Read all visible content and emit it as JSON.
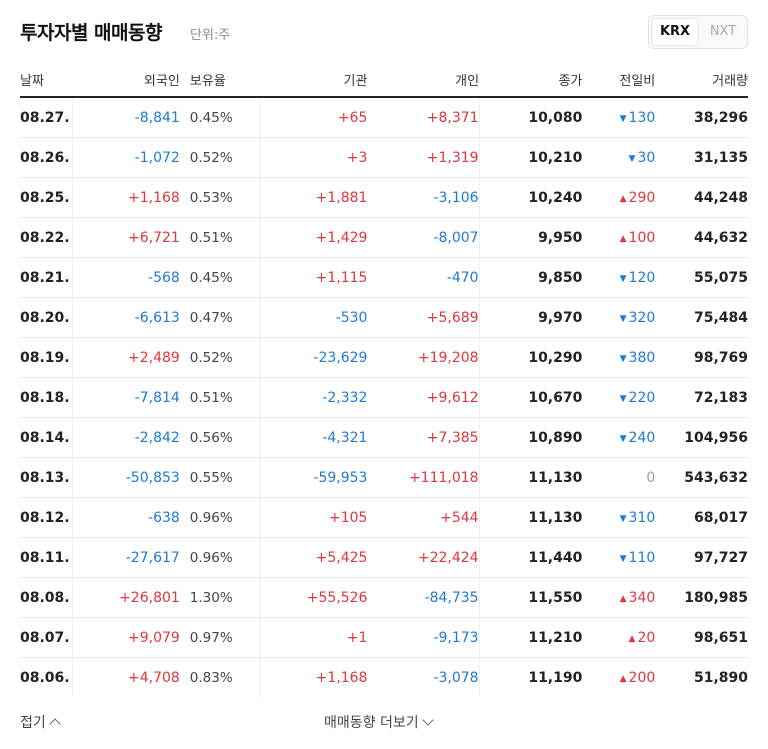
{
  "header": {
    "title": "투자자별 매매동향",
    "unit": "단위:주"
  },
  "market_toggle": {
    "options": [
      "KRX",
      "NXT"
    ],
    "selected": "KRX"
  },
  "columns": {
    "date": "날짜",
    "foreign": "외국인",
    "ratio": "보유율",
    "institution": "기관",
    "individual": "개인",
    "close": "종가",
    "change": "전일비",
    "volume": "거래량"
  },
  "colors": {
    "positive": "#e0363d",
    "negative": "#1e7ad6"
  },
  "rows": [
    {
      "date": "08.27.",
      "foreign": "-8,841",
      "ratio": "0.45%",
      "institution": "+65",
      "individual": "+8,371",
      "close": "10,080",
      "change_dir": "down",
      "change": "130",
      "volume": "38,296"
    },
    {
      "date": "08.26.",
      "foreign": "-1,072",
      "ratio": "0.52%",
      "institution": "+3",
      "individual": "+1,319",
      "close": "10,210",
      "change_dir": "down",
      "change": "30",
      "volume": "31,135"
    },
    {
      "date": "08.25.",
      "foreign": "+1,168",
      "ratio": "0.53%",
      "institution": "+1,881",
      "individual": "-3,106",
      "close": "10,240",
      "change_dir": "up",
      "change": "290",
      "volume": "44,248"
    },
    {
      "date": "08.22.",
      "foreign": "+6,721",
      "ratio": "0.51%",
      "institution": "+1,429",
      "individual": "-8,007",
      "close": "9,950",
      "change_dir": "up",
      "change": "100",
      "volume": "44,632"
    },
    {
      "date": "08.21.",
      "foreign": "-568",
      "ratio": "0.45%",
      "institution": "+1,115",
      "individual": "-470",
      "close": "9,850",
      "change_dir": "down",
      "change": "120",
      "volume": "55,075"
    },
    {
      "date": "08.20.",
      "foreign": "-6,613",
      "ratio": "0.47%",
      "institution": "-530",
      "individual": "+5,689",
      "close": "9,970",
      "change_dir": "down",
      "change": "320",
      "volume": "75,484"
    },
    {
      "date": "08.19.",
      "foreign": "+2,489",
      "ratio": "0.52%",
      "institution": "-23,629",
      "individual": "+19,208",
      "close": "10,290",
      "change_dir": "down",
      "change": "380",
      "volume": "98,769"
    },
    {
      "date": "08.18.",
      "foreign": "-7,814",
      "ratio": "0.51%",
      "institution": "-2,332",
      "individual": "+9,612",
      "close": "10,670",
      "change_dir": "down",
      "change": "220",
      "volume": "72,183"
    },
    {
      "date": "08.14.",
      "foreign": "-2,842",
      "ratio": "0.56%",
      "institution": "-4,321",
      "individual": "+7,385",
      "close": "10,890",
      "change_dir": "down",
      "change": "240",
      "volume": "104,956"
    },
    {
      "date": "08.13.",
      "foreign": "-50,853",
      "ratio": "0.55%",
      "institution": "-59,953",
      "individual": "+111,018",
      "close": "11,130",
      "change_dir": "none",
      "change": "0",
      "volume": "543,632"
    },
    {
      "date": "08.12.",
      "foreign": "-638",
      "ratio": "0.96%",
      "institution": "+105",
      "individual": "+544",
      "close": "11,130",
      "change_dir": "down",
      "change": "310",
      "volume": "68,017"
    },
    {
      "date": "08.11.",
      "foreign": "-27,617",
      "ratio": "0.96%",
      "institution": "+5,425",
      "individual": "+22,424",
      "close": "11,440",
      "change_dir": "down",
      "change": "110",
      "volume": "97,727"
    },
    {
      "date": "08.08.",
      "foreign": "+26,801",
      "ratio": "1.30%",
      "institution": "+55,526",
      "individual": "-84,735",
      "close": "11,550",
      "change_dir": "up",
      "change": "340",
      "volume": "180,985"
    },
    {
      "date": "08.07.",
      "foreign": "+9,079",
      "ratio": "0.97%",
      "institution": "+1",
      "individual": "-9,173",
      "close": "11,210",
      "change_dir": "up",
      "change": "20",
      "volume": "98,651"
    },
    {
      "date": "08.06.",
      "foreign": "+4,708",
      "ratio": "0.83%",
      "institution": "+1,168",
      "individual": "-3,078",
      "close": "11,190",
      "change_dir": "up",
      "change": "200",
      "volume": "51,890"
    }
  ],
  "footer": {
    "collapse_label": "접기",
    "more_label": "매매동향 더보기"
  }
}
